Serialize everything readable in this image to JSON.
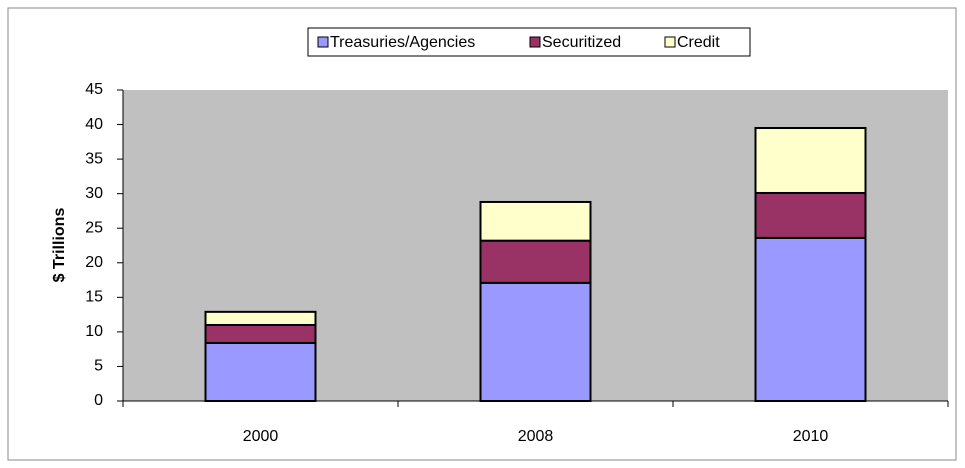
{
  "chart_data": {
    "type": "stacked_bar",
    "y_label": "$ Trillions",
    "categories": [
      "2000",
      "2008",
      "2010"
    ],
    "series": [
      {
        "name": "Treasuries/Agencies",
        "color": "#9999ff",
        "values": [
          8.4,
          17.1,
          23.6
        ]
      },
      {
        "name": "Securitized",
        "color": "#993366",
        "values": [
          2.6,
          6.1,
          6.5
        ]
      },
      {
        "name": "Credit",
        "color": "#ffffcc",
        "values": [
          1.9,
          5.6,
          9.4
        ]
      }
    ],
    "ylim": [
      0,
      45
    ],
    "yticks": [
      0,
      5,
      10,
      15,
      20,
      25,
      30,
      35,
      40,
      45
    ],
    "grid": false,
    "legend": "top",
    "plot_background": "#c0c0c0"
  }
}
